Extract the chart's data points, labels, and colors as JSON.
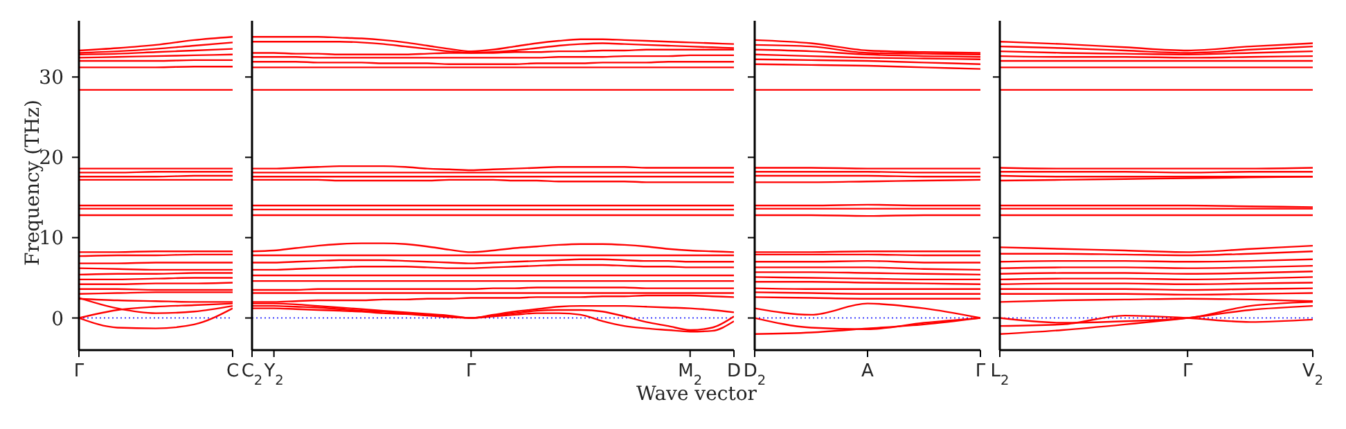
{
  "chart_data": [
    {
      "type": "line",
      "ylabel": "Frequency (THz)",
      "categories": [
        "Γ",
        null,
        null,
        null,
        "C"
      ],
      "ylim": [
        -4,
        37
      ],
      "yticks": [
        0,
        10,
        20,
        30
      ],
      "ref_lines": [
        {
          "axis": "y",
          "value": 0,
          "color": "#0000ff",
          "line_style": "dotted"
        }
      ],
      "series": [
        {
          "color": "#ff0000",
          "values": [
            33.3,
            33.6,
            34.0,
            34.6,
            35.0
          ]
        },
        {
          "color": "#ff0000",
          "values": [
            33.0,
            33.2,
            33.5,
            33.9,
            34.3
          ]
        },
        {
          "color": "#ff0000",
          "values": [
            32.8,
            32.9,
            33.1,
            33.3,
            33.5
          ]
        },
        {
          "color": "#ff0000",
          "values": [
            32.4,
            32.5,
            32.6,
            32.7,
            32.8
          ]
        },
        {
          "color": "#ff0000",
          "values": [
            32.0,
            32.0,
            32.0,
            32.1,
            32.1
          ]
        },
        {
          "color": "#ff0000",
          "values": [
            31.2,
            31.2,
            31.2,
            31.3,
            31.3
          ]
        },
        {
          "color": "#ff0000",
          "values": [
            28.4,
            28.4,
            28.4,
            28.4,
            28.4
          ]
        },
        {
          "color": "#ff0000",
          "values": [
            18.6,
            18.6,
            18.6,
            18.6,
            18.6
          ]
        },
        {
          "color": "#ff0000",
          "values": [
            18.1,
            18.1,
            18.2,
            18.2,
            18.2
          ]
        },
        {
          "color": "#ff0000",
          "values": [
            17.6,
            17.6,
            17.6,
            17.7,
            17.7
          ]
        },
        {
          "color": "#ff0000",
          "values": [
            17.2,
            17.2,
            17.2,
            17.2,
            17.2
          ]
        },
        {
          "color": "#ff0000",
          "values": [
            14.0,
            14.0,
            14.0,
            14.0,
            14.0
          ]
        },
        {
          "color": "#ff0000",
          "values": [
            13.6,
            13.6,
            13.6,
            13.6,
            13.6
          ]
        },
        {
          "color": "#ff0000",
          "values": [
            12.8,
            12.8,
            12.8,
            12.8,
            12.8
          ]
        },
        {
          "color": "#ff0000",
          "values": [
            8.2,
            8.2,
            8.3,
            8.3,
            8.3
          ]
        },
        {
          "color": "#ff0000",
          "values": [
            7.7,
            7.8,
            7.8,
            7.9,
            7.9
          ]
        },
        {
          "color": "#ff0000",
          "values": [
            6.8,
            6.8,
            6.9,
            6.9,
            6.9
          ]
        },
        {
          "color": "#ff0000",
          "values": [
            6.2,
            6.1,
            6.0,
            6.0,
            6.0
          ]
        },
        {
          "color": "#ff0000",
          "values": [
            5.4,
            5.5,
            5.5,
            5.6,
            5.6
          ]
        },
        {
          "color": "#ff0000",
          "values": [
            4.8,
            4.8,
            4.9,
            5.0,
            5.0
          ]
        },
        {
          "color": "#ff0000",
          "values": [
            4.2,
            4.2,
            4.3,
            4.3,
            4.4
          ]
        },
        {
          "color": "#ff0000",
          "values": [
            3.6,
            3.6,
            3.5,
            3.5,
            3.5
          ]
        },
        {
          "color": "#ff0000",
          "values": [
            3.0,
            3.1,
            3.2,
            3.2,
            3.2
          ]
        },
        {
          "color": "#ff0000",
          "values": [
            2.4,
            2.2,
            2.1,
            2.0,
            2.0
          ]
        },
        {
          "color": "#ff0000",
          "values": [
            0,
            1.0,
            1.4,
            1.6,
            1.8
          ]
        },
        {
          "color": "#ff0000",
          "values": [
            2.5,
            1.2,
            0.6,
            0.8,
            1.5
          ]
        },
        {
          "color": "#ff0000",
          "values": [
            0,
            -1.2,
            -1.3,
            -0.8,
            1.2
          ]
        }
      ]
    },
    {
      "type": "line",
      "xlabel": "Wave vector",
      "tick_labels": "x",
      "categories": [
        "C$_{2}$",
        "Y$_{2}$",
        null,
        null,
        null,
        null,
        null,
        null,
        null,
        null,
        "Γ",
        null,
        null,
        null,
        null,
        null,
        null,
        null,
        null,
        null,
        "M$_{2}$",
        null,
        "D"
      ],
      "ylim": [
        -4,
        37
      ],
      "yticks": [
        0,
        10,
        20,
        30
      ],
      "ref_lines": [
        {
          "axis": "y",
          "value": 0,
          "color": "#0000ff",
          "line_style": "dotted"
        }
      ],
      "series": [
        {
          "color": "#ff0000",
          "values": [
            35.0,
            35.0,
            35.0,
            35.0,
            34.9,
            34.8,
            34.6,
            34.3,
            33.9,
            33.5,
            33.2,
            33.4,
            33.8,
            34.2,
            34.5,
            34.7,
            34.7,
            34.6,
            34.5,
            34.4,
            34.3,
            34.2,
            34.1
          ]
        },
        {
          "color": "#ff0000",
          "values": [
            34.4,
            34.4,
            34.4,
            34.4,
            34.4,
            34.3,
            34.1,
            33.8,
            33.5,
            33.2,
            33.0,
            33.1,
            33.3,
            33.6,
            33.9,
            34.1,
            34.2,
            34.1,
            34.0,
            33.9,
            33.8,
            33.7,
            33.6
          ]
        },
        {
          "color": "#ff0000",
          "values": [
            33.0,
            33.0,
            32.9,
            32.9,
            32.8,
            32.8,
            32.8,
            32.8,
            32.9,
            33.0,
            33.0,
            33.0,
            33.1,
            33.1,
            33.2,
            33.2,
            33.3,
            33.3,
            33.4,
            33.4,
            33.4,
            33.4,
            33.4
          ]
        },
        {
          "color": "#ff0000",
          "values": [
            32.5,
            32.5,
            32.5,
            32.4,
            32.4,
            32.4,
            32.4,
            32.4,
            32.4,
            32.4,
            32.4,
            32.4,
            32.4,
            32.4,
            32.5,
            32.5,
            32.5,
            32.6,
            32.6,
            32.6,
            32.7,
            32.7,
            32.7
          ]
        },
        {
          "color": "#ff0000",
          "values": [
            31.9,
            31.9,
            31.9,
            31.8,
            31.8,
            31.8,
            31.7,
            31.7,
            31.7,
            31.6,
            31.6,
            31.6,
            31.6,
            31.7,
            31.7,
            31.7,
            31.8,
            31.8,
            31.8,
            31.9,
            31.9,
            31.9,
            31.9
          ]
        },
        {
          "color": "#ff0000",
          "values": [
            31.2,
            31.2,
            31.2,
            31.2,
            31.2,
            31.2,
            31.2,
            31.2,
            31.2,
            31.2,
            31.2,
            31.2,
            31.2,
            31.2,
            31.2,
            31.2,
            31.2,
            31.2,
            31.2,
            31.2,
            31.2,
            31.2,
            31.2
          ]
        },
        {
          "color": "#ff0000",
          "values": [
            28.4,
            28.4,
            28.4,
            28.4,
            28.4,
            28.4,
            28.4,
            28.4,
            28.4,
            28.4,
            28.4,
            28.4,
            28.4,
            28.4,
            28.4,
            28.4,
            28.4,
            28.4,
            28.4,
            28.4,
            28.4,
            28.4,
            28.4
          ]
        },
        {
          "color": "#ff0000",
          "values": [
            18.6,
            18.6,
            18.7,
            18.8,
            18.9,
            18.9,
            18.9,
            18.8,
            18.6,
            18.5,
            18.4,
            18.5,
            18.6,
            18.7,
            18.8,
            18.8,
            18.8,
            18.8,
            18.7,
            18.7,
            18.7,
            18.7,
            18.7
          ]
        },
        {
          "color": "#ff0000",
          "values": [
            18.1,
            18.1,
            18.1,
            18.1,
            18.1,
            18.1,
            18.1,
            18.1,
            18.1,
            18.1,
            18.1,
            18.1,
            18.1,
            18.1,
            18.1,
            18.1,
            18.1,
            18.1,
            18.1,
            18.1,
            18.1,
            18.1,
            18.1
          ]
        },
        {
          "color": "#ff0000",
          "values": [
            17.6,
            17.6,
            17.6,
            17.6,
            17.6,
            17.6,
            17.6,
            17.6,
            17.6,
            17.6,
            17.6,
            17.6,
            17.6,
            17.6,
            17.6,
            17.6,
            17.6,
            17.6,
            17.6,
            17.6,
            17.6,
            17.6,
            17.6
          ]
        },
        {
          "color": "#ff0000",
          "values": [
            17.2,
            17.2,
            17.2,
            17.2,
            17.1,
            17.1,
            17.1,
            17.1,
            17.1,
            17.2,
            17.2,
            17.2,
            17.1,
            17.1,
            17.0,
            17.0,
            17.0,
            17.0,
            16.9,
            16.9,
            16.9,
            16.9,
            16.9
          ]
        },
        {
          "color": "#ff0000",
          "values": [
            14.0,
            14.0,
            14.0,
            14.0,
            14.0,
            14.0,
            14.0,
            14.0,
            14.0,
            14.0,
            14.0,
            14.0,
            14.0,
            14.0,
            14.0,
            14.0,
            14.0,
            14.0,
            14.0,
            14.0,
            14.0,
            14.0,
            14.0
          ]
        },
        {
          "color": "#ff0000",
          "values": [
            13.5,
            13.5,
            13.5,
            13.5,
            13.5,
            13.5,
            13.5,
            13.5,
            13.5,
            13.5,
            13.5,
            13.5,
            13.5,
            13.5,
            13.5,
            13.5,
            13.5,
            13.5,
            13.5,
            13.5,
            13.5,
            13.5,
            13.5
          ]
        },
        {
          "color": "#ff0000",
          "values": [
            12.8,
            12.8,
            12.8,
            12.8,
            12.8,
            12.8,
            12.8,
            12.8,
            12.8,
            12.8,
            12.8,
            12.8,
            12.8,
            12.8,
            12.8,
            12.8,
            12.8,
            12.8,
            12.8,
            12.8,
            12.8,
            12.8,
            12.8
          ]
        },
        {
          "color": "#ff0000",
          "values": [
            8.3,
            8.4,
            8.7,
            9.0,
            9.2,
            9.3,
            9.3,
            9.2,
            8.9,
            8.5,
            8.2,
            8.4,
            8.7,
            8.9,
            9.1,
            9.2,
            9.2,
            9.1,
            8.9,
            8.6,
            8.4,
            8.3,
            8.2
          ]
        },
        {
          "color": "#ff0000",
          "values": [
            7.8,
            7.8,
            7.8,
            7.8,
            7.8,
            7.8,
            7.8,
            7.8,
            7.8,
            7.8,
            7.8,
            7.8,
            7.8,
            7.8,
            7.8,
            7.8,
            7.8,
            7.8,
            7.8,
            7.8,
            7.8,
            7.8,
            7.8
          ]
        },
        {
          "color": "#ff0000",
          "values": [
            6.9,
            6.9,
            7.0,
            7.1,
            7.2,
            7.2,
            7.2,
            7.1,
            7.0,
            6.9,
            6.8,
            6.9,
            7.0,
            7.1,
            7.2,
            7.3,
            7.3,
            7.2,
            7.1,
            7.1,
            7.0,
            7.0,
            7.0
          ]
        },
        {
          "color": "#ff0000",
          "values": [
            6.0,
            6.0,
            6.1,
            6.2,
            6.3,
            6.4,
            6.4,
            6.4,
            6.3,
            6.2,
            6.2,
            6.3,
            6.4,
            6.5,
            6.6,
            6.6,
            6.6,
            6.5,
            6.4,
            6.4,
            6.3,
            6.3,
            6.3
          ]
        },
        {
          "color": "#ff0000",
          "values": [
            5.3,
            5.3,
            5.3,
            5.3,
            5.3,
            5.3,
            5.3,
            5.3,
            5.3,
            5.3,
            5.3,
            5.3,
            5.3,
            5.3,
            5.3,
            5.3,
            5.3,
            5.3,
            5.3,
            5.3,
            5.3,
            5.3,
            5.3
          ]
        },
        {
          "color": "#ff0000",
          "values": [
            4.6,
            4.6,
            4.6,
            4.6,
            4.6,
            4.6,
            4.6,
            4.6,
            4.6,
            4.6,
            4.6,
            4.6,
            4.6,
            4.6,
            4.6,
            4.6,
            4.6,
            4.6,
            4.6,
            4.6,
            4.6,
            4.6,
            4.6
          ]
        },
        {
          "color": "#ff0000",
          "values": [
            3.5,
            3.5,
            3.5,
            3.6,
            3.6,
            3.6,
            3.6,
            3.6,
            3.6,
            3.6,
            3.6,
            3.7,
            3.7,
            3.8,
            3.8,
            3.8,
            3.8,
            3.8,
            3.7,
            3.7,
            3.7,
            3.7,
            3.7
          ]
        },
        {
          "color": "#ff0000",
          "values": [
            3.1,
            3.1,
            3.1,
            3.1,
            3.1,
            3.1,
            3.1,
            3.1,
            3.1,
            3.1,
            3.1,
            3.1,
            3.1,
            3.1,
            3.1,
            3.1,
            3.1,
            3.1,
            3.1,
            3.1,
            3.1,
            3.1,
            3.1
          ]
        },
        {
          "color": "#ff0000",
          "values": [
            2.0,
            2.0,
            2.1,
            2.2,
            2.2,
            2.2,
            2.3,
            2.3,
            2.4,
            2.4,
            2.5,
            2.5,
            2.5,
            2.6,
            2.6,
            2.6,
            2.7,
            2.7,
            2.8,
            2.8,
            2.8,
            2.7,
            2.6
          ]
        },
        {
          "color": "#ff0000",
          "values": [
            1.8,
            1.8,
            1.7,
            1.5,
            1.3,
            1.1,
            0.9,
            0.7,
            0.5,
            0.3,
            0,
            0.4,
            0.8,
            1.1,
            1.4,
            1.5,
            1.5,
            1.5,
            1.4,
            1.3,
            1.2,
            1.0,
            0.7
          ]
        },
        {
          "color": "#ff0000",
          "values": [
            1.5,
            1.5,
            1.4,
            1.3,
            1.1,
            0.9,
            0.8,
            0.6,
            0.4,
            0.2,
            0,
            0.3,
            0.6,
            0.9,
            1.0,
            1.0,
            0.8,
            0.2,
            -0.5,
            -1.0,
            -1.5,
            -1.2,
            0.2
          ]
        },
        {
          "color": "#ff0000",
          "values": [
            1.2,
            1.2,
            1.1,
            1.0,
            0.9,
            0.8,
            0.6,
            0.5,
            0.3,
            0.1,
            0,
            0.2,
            0.4,
            0.6,
            0.6,
            0.4,
            -0.4,
            -1.0,
            -1.3,
            -1.5,
            -1.7,
            -1.6,
            -0.4
          ]
        }
      ]
    },
    {
      "type": "line",
      "tick_labels": "x",
      "categories": [
        "D$_{2}$",
        null,
        "A",
        null,
        "Γ"
      ],
      "ylim": [
        -4,
        37
      ],
      "yticks": [
        0,
        10,
        20,
        30
      ],
      "ref_lines": [
        {
          "axis": "y",
          "value": 0,
          "color": "#0000ff",
          "line_style": "dotted"
        }
      ],
      "series": [
        {
          "color": "#ff0000",
          "values": [
            34.6,
            34.2,
            33.3,
            33.1,
            33.0
          ]
        },
        {
          "color": "#ff0000",
          "values": [
            34.0,
            33.8,
            33.0,
            32.9,
            32.8
          ]
        },
        {
          "color": "#ff0000",
          "values": [
            33.4,
            33.2,
            32.8,
            32.6,
            32.5
          ]
        },
        {
          "color": "#ff0000",
          "values": [
            32.8,
            32.6,
            32.4,
            32.3,
            32.2
          ]
        },
        {
          "color": "#ff0000",
          "values": [
            32.2,
            32.1,
            32.0,
            31.8,
            31.6
          ]
        },
        {
          "color": "#ff0000",
          "values": [
            31.6,
            31.5,
            31.4,
            31.2,
            31.0
          ]
        },
        {
          "color": "#ff0000",
          "values": [
            28.4,
            28.4,
            28.4,
            28.4,
            28.4
          ]
        },
        {
          "color": "#ff0000",
          "values": [
            18.7,
            18.7,
            18.6,
            18.6,
            18.6
          ]
        },
        {
          "color": "#ff0000",
          "values": [
            18.2,
            18.2,
            18.2,
            18.1,
            18.1
          ]
        },
        {
          "color": "#ff0000",
          "values": [
            17.7,
            17.7,
            17.7,
            17.6,
            17.6
          ]
        },
        {
          "color": "#ff0000",
          "values": [
            16.9,
            16.9,
            17.0,
            17.1,
            17.2
          ]
        },
        {
          "color": "#ff0000",
          "values": [
            14.0,
            14.0,
            14.1,
            14.0,
            14.0
          ]
        },
        {
          "color": "#ff0000",
          "values": [
            13.6,
            13.6,
            13.6,
            13.6,
            13.6
          ]
        },
        {
          "color": "#ff0000",
          "values": [
            12.8,
            12.8,
            12.7,
            12.8,
            12.8
          ]
        },
        {
          "color": "#ff0000",
          "values": [
            8.2,
            8.2,
            8.3,
            8.3,
            8.3
          ]
        },
        {
          "color": "#ff0000",
          "values": [
            7.9,
            7.9,
            7.9,
            7.8,
            7.8
          ]
        },
        {
          "color": "#ff0000",
          "values": [
            7.0,
            7.0,
            7.1,
            6.9,
            6.9
          ]
        },
        {
          "color": "#ff0000",
          "values": [
            6.3,
            6.3,
            6.3,
            6.1,
            6.0
          ]
        },
        {
          "color": "#ff0000",
          "values": [
            5.7,
            5.7,
            5.6,
            5.5,
            5.4
          ]
        },
        {
          "color": "#ff0000",
          "values": [
            5.1,
            5.0,
            4.9,
            4.8,
            4.8
          ]
        },
        {
          "color": "#ff0000",
          "values": [
            4.5,
            4.5,
            4.4,
            4.3,
            4.2
          ]
        },
        {
          "color": "#ff0000",
          "values": [
            3.7,
            3.6,
            3.6,
            3.6,
            3.6
          ]
        },
        {
          "color": "#ff0000",
          "values": [
            3.2,
            3.1,
            3.0,
            3.0,
            3.0
          ]
        },
        {
          "color": "#ff0000",
          "values": [
            2.6,
            2.5,
            2.4,
            2.4,
            2.4
          ]
        },
        {
          "color": "#ff0000",
          "values": [
            1.2,
            0.4,
            1.8,
            1.2,
            0
          ]
        },
        {
          "color": "#ff0000",
          "values": [
            0,
            -1.2,
            -1.4,
            -0.6,
            0
          ]
        },
        {
          "color": "#ff0000",
          "values": [
            -2.0,
            -1.8,
            -1.3,
            -0.8,
            0
          ]
        }
      ]
    },
    {
      "type": "line",
      "tick_labels": "x",
      "categories": [
        "L$_{2}$",
        null,
        null,
        "Γ",
        null,
        "V$_{2}$"
      ],
      "ylim": [
        -4,
        37
      ],
      "yticks": [
        0,
        10,
        20,
        30
      ],
      "ref_lines": [
        {
          "axis": "y",
          "value": 0,
          "color": "#0000ff",
          "line_style": "dotted"
        }
      ],
      "series": [
        {
          "color": "#ff0000",
          "values": [
            34.4,
            34.1,
            33.7,
            33.3,
            33.8,
            34.2
          ]
        },
        {
          "color": "#ff0000",
          "values": [
            33.8,
            33.6,
            33.3,
            33.0,
            33.4,
            33.8
          ]
        },
        {
          "color": "#ff0000",
          "values": [
            33.2,
            33.0,
            32.9,
            32.8,
            33.0,
            33.2
          ]
        },
        {
          "color": "#ff0000",
          "values": [
            32.6,
            32.5,
            32.5,
            32.4,
            32.5,
            32.6
          ]
        },
        {
          "color": "#ff0000",
          "values": [
            32.0,
            32.0,
            32.0,
            32.0,
            32.0,
            32.0
          ]
        },
        {
          "color": "#ff0000",
          "values": [
            31.2,
            31.2,
            31.2,
            31.2,
            31.2,
            31.2
          ]
        },
        {
          "color": "#ff0000",
          "values": [
            28.4,
            28.4,
            28.4,
            28.4,
            28.4,
            28.4
          ]
        },
        {
          "color": "#ff0000",
          "values": [
            18.7,
            18.6,
            18.6,
            18.6,
            18.6,
            18.7
          ]
        },
        {
          "color": "#ff0000",
          "values": [
            18.2,
            18.2,
            18.2,
            18.1,
            18.2,
            18.2
          ]
        },
        {
          "color": "#ff0000",
          "values": [
            17.7,
            17.6,
            17.6,
            17.6,
            17.6,
            17.6
          ]
        },
        {
          "color": "#ff0000",
          "values": [
            17.1,
            17.2,
            17.3,
            17.4,
            17.5,
            17.6
          ]
        },
        {
          "color": "#ff0000",
          "values": [
            14.0,
            14.0,
            14.0,
            14.0,
            13.9,
            13.8
          ]
        },
        {
          "color": "#ff0000",
          "values": [
            13.6,
            13.6,
            13.6,
            13.6,
            13.6,
            13.6
          ]
        },
        {
          "color": "#ff0000",
          "values": [
            12.8,
            12.8,
            12.8,
            12.8,
            12.8,
            12.8
          ]
        },
        {
          "color": "#ff0000",
          "values": [
            8.8,
            8.6,
            8.4,
            8.2,
            8.6,
            9.0
          ]
        },
        {
          "color": "#ff0000",
          "values": [
            8.0,
            8.0,
            7.9,
            7.8,
            8.0,
            8.3
          ]
        },
        {
          "color": "#ff0000",
          "values": [
            7.0,
            7.1,
            7.1,
            7.0,
            7.1,
            7.3
          ]
        },
        {
          "color": "#ff0000",
          "values": [
            6.2,
            6.3,
            6.3,
            6.2,
            6.3,
            6.5
          ]
        },
        {
          "color": "#ff0000",
          "values": [
            5.5,
            5.6,
            5.6,
            5.5,
            5.6,
            5.8
          ]
        },
        {
          "color": "#ff0000",
          "values": [
            4.8,
            4.9,
            4.9,
            4.8,
            4.9,
            5.1
          ]
        },
        {
          "color": "#ff0000",
          "values": [
            4.2,
            4.3,
            4.3,
            4.2,
            4.3,
            4.4
          ]
        },
        {
          "color": "#ff0000",
          "values": [
            3.6,
            3.6,
            3.6,
            3.5,
            3.6,
            3.7
          ]
        },
        {
          "color": "#ff0000",
          "values": [
            3.0,
            3.0,
            3.0,
            2.9,
            3.0,
            3.1
          ]
        },
        {
          "color": "#ff0000",
          "values": [
            2.0,
            2.2,
            2.3,
            2.4,
            2.3,
            2.1
          ]
        },
        {
          "color": "#ff0000",
          "values": [
            0,
            -0.6,
            -0.4,
            0,
            1.5,
            2.0
          ]
        },
        {
          "color": "#ff0000",
          "values": [
            -1.0,
            -0.8,
            0.3,
            0,
            -0.5,
            -0.2
          ]
        },
        {
          "color": "#ff0000",
          "values": [
            -2.0,
            -1.5,
            -0.8,
            0,
            1.0,
            1.5
          ]
        }
      ]
    }
  ]
}
